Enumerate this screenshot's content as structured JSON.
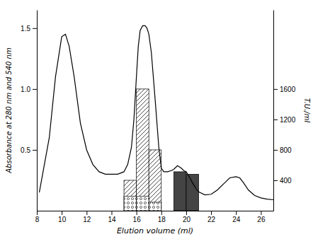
{
  "chart_data": {
    "type": "line",
    "xlabel": "Elution volume (ml)",
    "ylabel": "Absorbance at 280 nm and 540 nm",
    "y2label": "T.U./ml",
    "xlim": [
      8,
      27
    ],
    "ylim": [
      0,
      1.65
    ],
    "y2lim": [
      0,
      2640
    ],
    "xticks": [
      8,
      10,
      12,
      14,
      16,
      18,
      20,
      22,
      24,
      26
    ],
    "yticks": [
      0.5,
      {
        "value": 1.0,
        "label": "1.0"
      },
      1.5
    ],
    "y2ticks": [
      400,
      800,
      1200,
      1600
    ],
    "grid": false,
    "series": [
      {
        "type": "line",
        "color": "black",
        "x": [
          8.2,
          9.0,
          9.5,
          10.0,
          10.3,
          10.6,
          11.0,
          11.5,
          12.0,
          12.5,
          13.0,
          13.5,
          14.0,
          14.5,
          15.0,
          15.3,
          15.6,
          15.8,
          16.0,
          16.15,
          16.3,
          16.5,
          16.7,
          16.85,
          17.0,
          17.2,
          17.5,
          17.8,
          18.0,
          18.2,
          18.5,
          18.8,
          19.0,
          19.3,
          19.6,
          19.8,
          20.0,
          20.3,
          20.5,
          20.8,
          21.0,
          21.5,
          22.0,
          22.5,
          23.0,
          23.5,
          24.0,
          24.3,
          24.6,
          25.0,
          25.5,
          26.0,
          26.5,
          27.0
        ],
        "values": [
          0.15,
          0.6,
          1.1,
          1.43,
          1.45,
          1.35,
          1.1,
          0.72,
          0.5,
          0.38,
          0.32,
          0.3,
          0.3,
          0.3,
          0.32,
          0.38,
          0.52,
          0.75,
          1.1,
          1.35,
          1.48,
          1.52,
          1.52,
          1.5,
          1.45,
          1.3,
          0.92,
          0.52,
          0.35,
          0.32,
          0.32,
          0.33,
          0.34,
          0.37,
          0.35,
          0.33,
          0.32,
          0.27,
          0.23,
          0.18,
          0.155,
          0.13,
          0.135,
          0.17,
          0.22,
          0.27,
          0.28,
          0.27,
          0.23,
          0.17,
          0.125,
          0.105,
          0.095,
          0.09
        ]
      },
      {
        "type": "bar",
        "color": "white",
        "marker": "hatched",
        "bins": [
          15.0,
          16.0,
          17.0,
          18.0
        ],
        "values": [
          0.25,
          1.0,
          0.5
        ]
      },
      {
        "type": "bar",
        "color": "white",
        "marker": "dotted",
        "bins": [
          15.0,
          16.0,
          17.0,
          18.0
        ],
        "values": [
          0.12,
          0.12,
          0.07
        ]
      },
      {
        "type": "bar",
        "color": "#444444",
        "bins": [
          19.0,
          20.0,
          21.0
        ],
        "values": [
          0.32,
          0.3
        ]
      }
    ]
  }
}
